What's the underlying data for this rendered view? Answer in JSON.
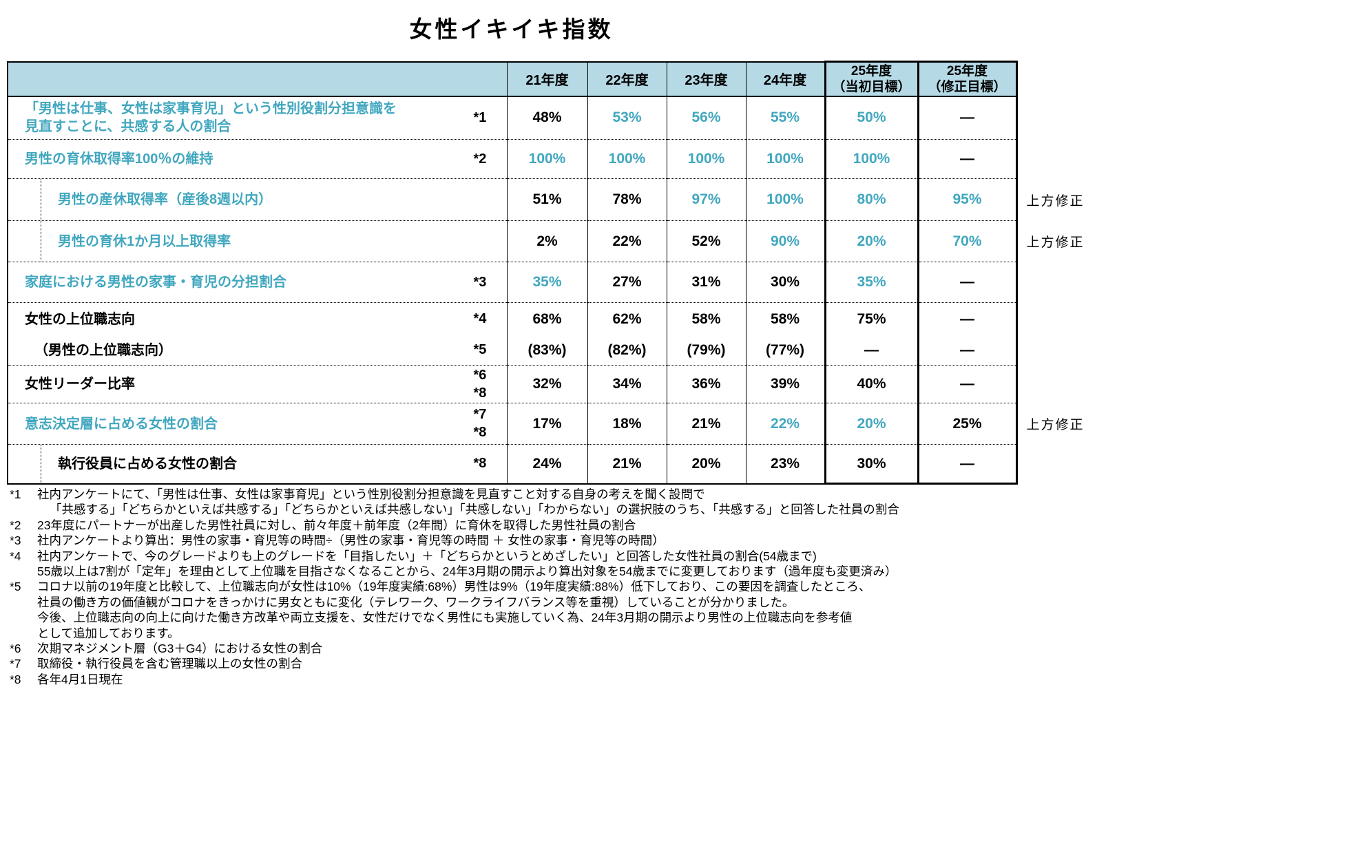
{
  "title": "女性イキイキ指数",
  "colors": {
    "teal": "#41A7BF",
    "header_bg": "#B5DAE6",
    "text": "#000000",
    "border": "#000000"
  },
  "table": {
    "year_columns": [
      "21年度",
      "22年度",
      "23年度",
      "24年度"
    ],
    "target_columns": [
      [
        "25年度",
        "（当初目標）"
      ],
      [
        "25年度",
        "（修正目標）"
      ]
    ],
    "rows": [
      {
        "label_lines": [
          "「男性は仕事、女性は家事育児」という性別役割分担意識を",
          "見直すことに、共感する人の割合"
        ],
        "color": "teal",
        "indent": false,
        "group_with_prev": false,
        "marks": [
          "*1"
        ],
        "values": [
          {
            "t": "48%",
            "c": "black"
          },
          {
            "t": "53%",
            "c": "teal"
          },
          {
            "t": "56%",
            "c": "teal"
          },
          {
            "t": "55%",
            "c": "teal"
          },
          {
            "t": "50%",
            "c": "teal"
          },
          {
            "t": "—",
            "c": "black"
          }
        ],
        "annotation": ""
      },
      {
        "label_lines": [
          "男性の育休取得率100％の維持"
        ],
        "color": "teal",
        "indent": false,
        "group_with_prev": false,
        "marks": [
          "*2"
        ],
        "values": [
          {
            "t": "100%",
            "c": "teal"
          },
          {
            "t": "100%",
            "c": "teal"
          },
          {
            "t": "100%",
            "c": "teal"
          },
          {
            "t": "100%",
            "c": "teal"
          },
          {
            "t": "100%",
            "c": "teal"
          },
          {
            "t": "—",
            "c": "black"
          }
        ],
        "annotation": ""
      },
      {
        "label_lines": [
          "男性の産休取得率（産後8週以内）"
        ],
        "color": "teal",
        "indent": true,
        "group_with_prev": false,
        "marks": [],
        "values": [
          {
            "t": "51%",
            "c": "black"
          },
          {
            "t": "78%",
            "c": "black"
          },
          {
            "t": "97%",
            "c": "teal"
          },
          {
            "t": "100%",
            "c": "teal"
          },
          {
            "t": "80%",
            "c": "teal"
          },
          {
            "t": "95%",
            "c": "teal"
          }
        ],
        "annotation": "上方修正"
      },
      {
        "label_lines": [
          "男性の育休1か月以上取得率"
        ],
        "color": "teal",
        "indent": true,
        "group_with_prev": false,
        "marks": [],
        "values": [
          {
            "t": "2%",
            "c": "black"
          },
          {
            "t": "22%",
            "c": "black"
          },
          {
            "t": "52%",
            "c": "black"
          },
          {
            "t": "90%",
            "c": "teal"
          },
          {
            "t": "20%",
            "c": "teal"
          },
          {
            "t": "70%",
            "c": "teal"
          }
        ],
        "annotation": "上方修正"
      },
      {
        "label_lines": [
          "家庭における男性の家事・育児の分担割合"
        ],
        "color": "teal",
        "indent": false,
        "group_with_prev": false,
        "marks": [
          "*3"
        ],
        "values": [
          {
            "t": "35%",
            "c": "teal"
          },
          {
            "t": "27%",
            "c": "black"
          },
          {
            "t": "31%",
            "c": "black"
          },
          {
            "t": "30%",
            "c": "black"
          },
          {
            "t": "35%",
            "c": "teal"
          },
          {
            "t": "—",
            "c": "black"
          }
        ],
        "annotation": ""
      },
      {
        "label_lines": [
          "女性の上位職志向"
        ],
        "color": "black",
        "indent": false,
        "group_with_prev": false,
        "marks": [
          "*4"
        ],
        "values": [
          {
            "t": "68%",
            "c": "black"
          },
          {
            "t": "62%",
            "c": "black"
          },
          {
            "t": "58%",
            "c": "black"
          },
          {
            "t": "58%",
            "c": "black"
          },
          {
            "t": "75%",
            "c": "black"
          },
          {
            "t": "—",
            "c": "black"
          }
        ],
        "annotation": ""
      },
      {
        "label_lines": [
          "（男性の上位職志向）"
        ],
        "color": "black",
        "indent": false,
        "group_with_prev": true,
        "sub_paren": true,
        "marks": [
          "*5"
        ],
        "values": [
          {
            "t": "(83%)",
            "c": "black"
          },
          {
            "t": "(82%)",
            "c": "black"
          },
          {
            "t": "(79%)",
            "c": "black"
          },
          {
            "t": "(77%)",
            "c": "black"
          },
          {
            "t": "—",
            "c": "black"
          },
          {
            "t": "—",
            "c": "black"
          }
        ],
        "annotation": ""
      },
      {
        "label_lines": [
          "女性リーダー比率"
        ],
        "color": "black",
        "indent": false,
        "group_with_prev": false,
        "marks": [
          "*6",
          "*8"
        ],
        "values": [
          {
            "t": "32%",
            "c": "black"
          },
          {
            "t": "34%",
            "c": "black"
          },
          {
            "t": "36%",
            "c": "black"
          },
          {
            "t": "39%",
            "c": "black"
          },
          {
            "t": "40%",
            "c": "black"
          },
          {
            "t": "—",
            "c": "black"
          }
        ],
        "annotation": ""
      },
      {
        "label_lines": [
          "意志決定層に占める女性の割合"
        ],
        "color": "teal",
        "indent": false,
        "group_with_prev": false,
        "marks": [
          "*7",
          "*8"
        ],
        "values": [
          {
            "t": "17%",
            "c": "black"
          },
          {
            "t": "18%",
            "c": "black"
          },
          {
            "t": "21%",
            "c": "black"
          },
          {
            "t": "22%",
            "c": "teal"
          },
          {
            "t": "20%",
            "c": "teal"
          },
          {
            "t": "25%",
            "c": "black"
          }
        ],
        "annotation": "上方修正"
      },
      {
        "label_lines": [
          "執行役員に占める女性の割合"
        ],
        "color": "black",
        "indent": true,
        "group_with_prev": false,
        "marks": [
          "*8"
        ],
        "values": [
          {
            "t": "24%",
            "c": "black"
          },
          {
            "t": "21%",
            "c": "black"
          },
          {
            "t": "20%",
            "c": "black"
          },
          {
            "t": "23%",
            "c": "black"
          },
          {
            "t": "30%",
            "c": "black"
          },
          {
            "t": "—",
            "c": "black"
          }
        ],
        "annotation": ""
      }
    ]
  },
  "footnotes": [
    {
      "m": "*1",
      "ind": 0,
      "t": "社内アンケートにて、「男性は仕事、女性は家事育児」という性別役割分担意識を見直すこと対する自身の考えを聞く設問で"
    },
    {
      "m": "",
      "ind": 2,
      "t": "「共感する」「どちらかといえば共感する」「どちらかといえば共感しない」「共感しない」「わからない」の選択肢のうち、「共感する」と回答した社員の割合"
    },
    {
      "m": "*2",
      "ind": 0,
      "t": "23年度にパートナーが出産した男性社員に対し、前々年度＋前年度（2年間）に育休を取得した男性社員の割合"
    },
    {
      "m": "*3",
      "ind": 0,
      "t": "社内アンケートより算出：男性の家事・育児等の時間÷（男性の家事・育児等の時間 ＋ 女性の家事・育児等の時間）"
    },
    {
      "m": "*4",
      "ind": 0,
      "t": "社内アンケートで、今のグレードよりも上のグレードを「目指したい」＋「どちらかというとめざしたい」と回答した女性社員の割合(54歳まで)"
    },
    {
      "m": "",
      "ind": 1,
      "t": "55歳以上は7割が「定年」を理由として上位職を目指さなくなることから、24年3月期の開示より算出対象を54歳までに変更しております（過年度も変更済み）"
    },
    {
      "m": "*5",
      "ind": 0,
      "t": "コロナ以前の19年度と比較して、上位職志向が女性は10%（19年度実績:68%）男性は9%（19年度実績:88%）低下しており、この要因を調査したところ、"
    },
    {
      "m": "",
      "ind": 1,
      "t": "社員の働き方の価値観がコロナをきっかけに男女ともに変化（テレワーク、ワークライフバランス等を重視）していることが分かりました。"
    },
    {
      "m": "",
      "ind": 1,
      "t": "今後、上位職志向の向上に向けた働き方改革や両立支援を、女性だけでなく男性にも実施していく為、24年3月期の開示より男性の上位職志向を参考値"
    },
    {
      "m": "",
      "ind": 1,
      "t": "として追加しております。"
    },
    {
      "m": "*6",
      "ind": 0,
      "t": "次期マネジメント層（G3＋G4）における女性の割合"
    },
    {
      "m": "*7",
      "ind": 0,
      "t": "取締役・執行役員を含む管理職以上の女性の割合"
    },
    {
      "m": "*8",
      "ind": 0,
      "t": "各年4月1日現在"
    }
  ]
}
